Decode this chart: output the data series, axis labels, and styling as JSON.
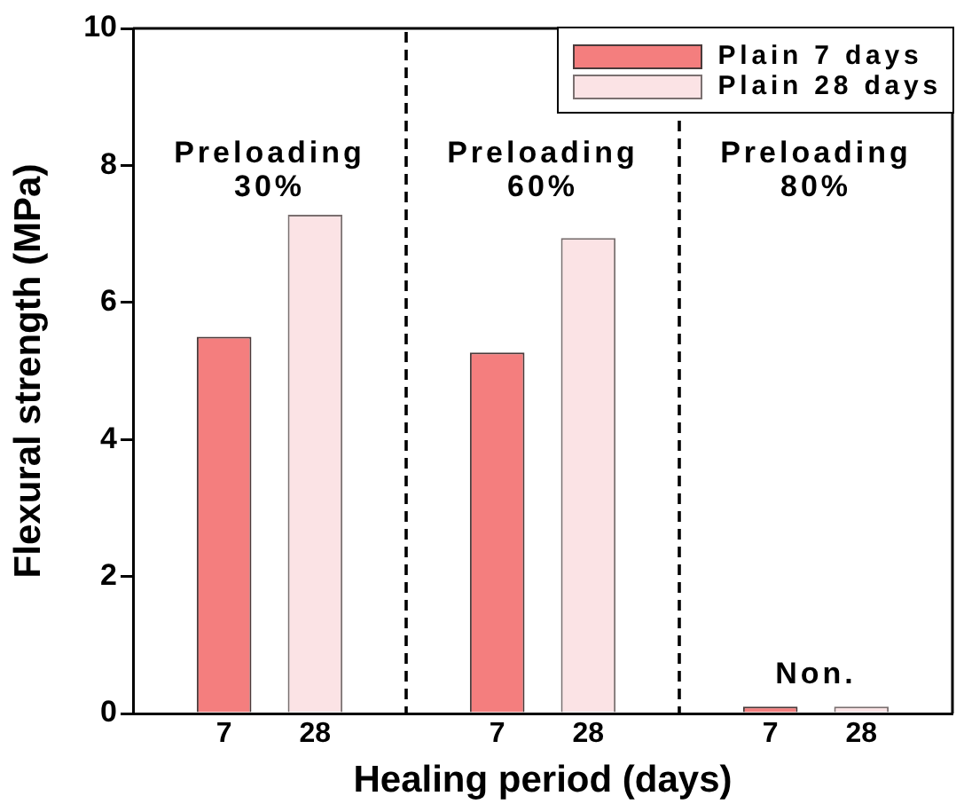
{
  "chart_data": {
    "type": "bar",
    "categories": [
      null,
      "7",
      "28",
      null,
      "7",
      "28",
      null,
      "7",
      "28",
      null
    ],
    "series": [
      {
        "name": "Plain 7 days",
        "color": "#f47e7e",
        "values": [
          null,
          5.5,
          null,
          null,
          5.27,
          null,
          null,
          0.1,
          null,
          null
        ]
      },
      {
        "name": "Plain 28 days",
        "color": "#fbe3e5",
        "values": [
          null,
          null,
          7.28,
          null,
          null,
          6.94,
          null,
          null,
          0.1,
          null
        ]
      }
    ],
    "xlabel": "Healing period (days)",
    "ylabel": "Flexural strength (MPa)",
    "ylim": [
      0,
      10
    ],
    "yticks": [
      0,
      2,
      4,
      6,
      8,
      10
    ],
    "annotations": [
      "Preloading\n30%",
      "Preloading\n60%",
      "Preloading\n80%",
      "Non."
    ],
    "legend": "top right"
  }
}
